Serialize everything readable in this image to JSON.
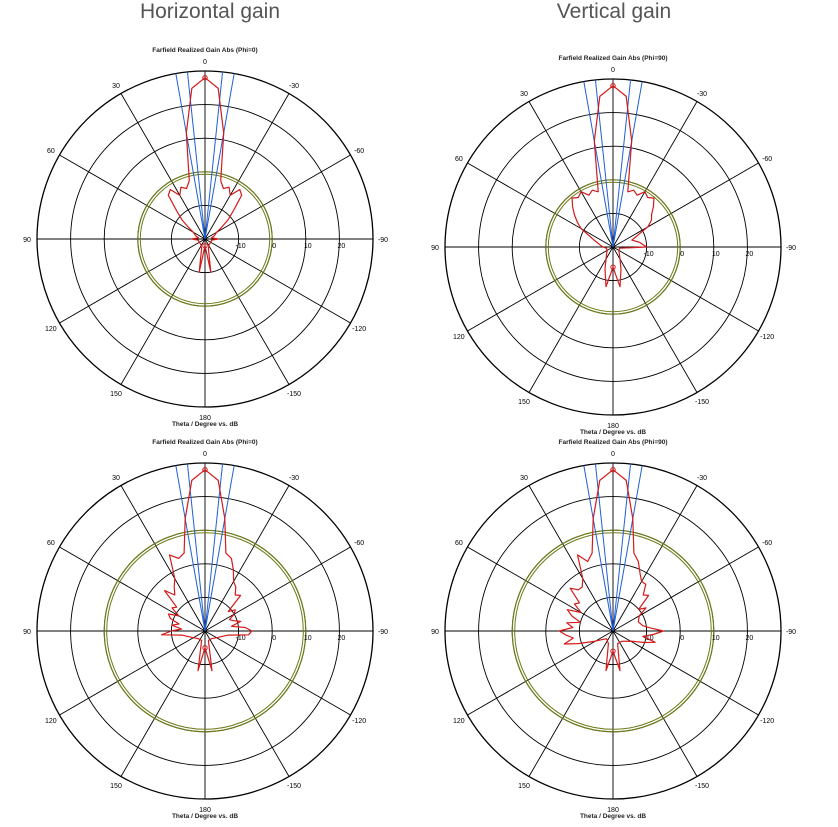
{
  "header": {
    "left_title": "Horizontal gain",
    "right_title": "Vertical gain"
  },
  "colors": {
    "grid": "#000000",
    "main_trace": "#d41a1a",
    "beam_lines": "#1f5fd6",
    "reference_circle": "#6f7a1a"
  },
  "chart_data": [
    {
      "type": "polar",
      "title": "Farfield Realized Gain Abs (Phi=0)",
      "xlabel": "Theta / Degree vs. dB",
      "angle_ticks": [
        "0",
        "30",
        "60",
        "90",
        "120",
        "150",
        "180",
        "-150",
        "-120",
        "-90",
        "-60",
        "-30"
      ],
      "radial_ticks": [
        "-10",
        "0",
        "10",
        "20"
      ],
      "rlim": [
        -20,
        30
      ],
      "reference_level": 0,
      "beam_angles": [
        -6,
        6,
        -10,
        10
      ],
      "series": [
        {
          "theta": [
            0,
            5,
            10,
            15,
            20,
            25,
            30,
            35,
            40,
            45,
            50,
            55,
            60,
            70,
            80,
            90,
            100,
            120,
            140,
            160,
            170,
            180,
            190,
            200,
            220,
            240,
            260,
            270,
            280,
            290,
            300,
            305,
            310,
            315,
            320,
            325,
            330,
            335,
            340,
            345,
            350,
            355,
            360
          ],
          "r": [
            28,
            25,
            12,
            -2,
            -4,
            -3,
            -5,
            -2,
            -3,
            -8,
            -11,
            -14,
            -16,
            -17,
            -18,
            -16,
            -18,
            -18,
            -18,
            -17,
            -10,
            -18,
            -10,
            -17,
            -18,
            -18,
            -18,
            -16,
            -18,
            -17,
            -16,
            -14,
            -11,
            -8,
            -3,
            -2,
            -5,
            -3,
            -4,
            -2,
            12,
            25,
            28
          ]
        }
      ]
    },
    {
      "type": "polar",
      "title": "Farfield Realized Gain Abs (Phi=90)",
      "xlabel": "Theta / Degree vs. dB",
      "angle_ticks": [
        "0",
        "30",
        "60",
        "90",
        "120",
        "150",
        "180",
        "-150",
        "-120",
        "-90",
        "-60",
        "-30"
      ],
      "radial_ticks": [
        "-10",
        "0",
        "10",
        "20"
      ],
      "rlim": [
        -20,
        30
      ],
      "reference_level": 0,
      "beam_angles": [
        -6,
        6,
        -10,
        10
      ],
      "series": [
        {
          "theta": [
            0,
            5,
            10,
            15,
            20,
            25,
            30,
            35,
            40,
            45,
            50,
            55,
            60,
            70,
            80,
            90,
            100,
            120,
            140,
            160,
            170,
            180,
            190,
            200,
            220,
            240,
            260,
            270,
            280,
            290,
            300,
            305,
            310,
            315,
            320,
            325,
            330,
            335,
            340,
            345,
            350,
            355,
            360
          ],
          "r": [
            28,
            25,
            12,
            -3,
            -2,
            -3,
            -1,
            -2,
            -1,
            -3,
            -5,
            -7,
            -9,
            -14,
            -16,
            -17,
            -18,
            -18,
            -17,
            -13,
            -8,
            -14,
            -8,
            -13,
            -17,
            -18,
            -18,
            -10,
            -12,
            -14,
            -8,
            -6,
            -5,
            -3,
            -1,
            -2,
            -1,
            -3,
            -2,
            -3,
            12,
            25,
            28
          ]
        }
      ]
    },
    {
      "type": "polar",
      "title": "Farfield Realized Gain Abs (Phi=0)",
      "xlabel": "Theta / Degree vs. dB",
      "angle_ticks": [
        "0",
        "30",
        "60",
        "90",
        "120",
        "150",
        "180",
        "-150",
        "-120",
        "-90",
        "-60",
        "-30"
      ],
      "radial_ticks": [
        "-10",
        "0",
        "10",
        "20"
      ],
      "rlim": [
        -20,
        30
      ],
      "reference_level": 10,
      "beam_angles": [
        -6,
        6,
        -10,
        10
      ],
      "series": [
        {
          "theta": [
            0,
            5,
            10,
            15,
            20,
            25,
            30,
            35,
            40,
            45,
            50,
            55,
            60,
            65,
            70,
            75,
            80,
            85,
            90,
            95,
            100,
            120,
            140,
            160,
            170,
            180,
            190,
            200,
            220,
            240,
            260,
            265,
            270,
            275,
            280,
            285,
            290,
            295,
            300,
            305,
            310,
            315,
            320,
            325,
            330,
            335,
            340,
            345,
            350,
            355,
            360
          ],
          "r": [
            28,
            25,
            14,
            4,
            3,
            5,
            -2,
            -4,
            -6,
            -3,
            -9,
            -8,
            -11,
            -8,
            -9,
            -12,
            -10,
            -13,
            -10,
            -7,
            -13,
            -16,
            -17,
            -17,
            -8,
            -15,
            -8,
            -17,
            -17,
            -16,
            -13,
            -7,
            -6,
            -8,
            -12,
            -9,
            -11,
            -12,
            -10,
            -9,
            -11,
            -5,
            -6,
            -4,
            -3,
            0,
            3,
            4,
            14,
            25,
            28
          ]
        }
      ]
    },
    {
      "type": "polar",
      "title": "Farfield Realized Gain Abs (Phi=90)",
      "xlabel": "Theta / Degree vs. dB",
      "angle_ticks": [
        "0",
        "30",
        "60",
        "90",
        "120",
        "150",
        "180",
        "-150",
        "-120",
        "-90",
        "-60",
        "-30"
      ],
      "radial_ticks": [
        "-10",
        "0",
        "10",
        "20"
      ],
      "rlim": [
        -20,
        30
      ],
      "reference_level": 10,
      "beam_angles": [
        -6,
        6,
        -10,
        10
      ],
      "series": [
        {
          "theta": [
            0,
            5,
            10,
            15,
            20,
            25,
            30,
            35,
            40,
            45,
            50,
            55,
            60,
            65,
            70,
            75,
            80,
            85,
            90,
            95,
            100,
            105,
            110,
            120,
            140,
            160,
            170,
            180,
            190,
            200,
            220,
            240,
            250,
            255,
            260,
            265,
            270,
            275,
            280,
            290,
            300,
            305,
            310,
            315,
            320,
            325,
            330,
            335,
            340,
            345,
            350,
            355,
            360
          ],
          "r": [
            28,
            25,
            14,
            4,
            2,
            5,
            -2,
            -4,
            -4,
            -2,
            -7,
            -6,
            -9,
            -5,
            -7,
            -10,
            -6,
            -8,
            -4,
            -6,
            -8,
            -5,
            -9,
            -14,
            -17,
            -16,
            -8,
            -14,
            -8,
            -16,
            -16,
            -14,
            -10,
            -7,
            -11,
            -8,
            -5,
            -9,
            -11,
            -12,
            -11,
            -8,
            -10,
            -5,
            -6,
            -3,
            -3,
            -1,
            2,
            4,
            14,
            25,
            28
          ]
        }
      ]
    }
  ]
}
